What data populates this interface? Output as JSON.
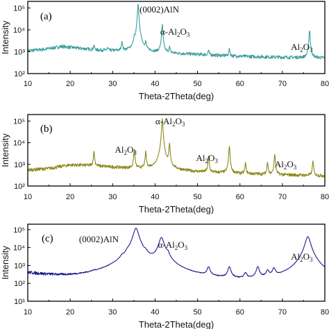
{
  "chart_data": [
    {
      "type": "line",
      "panel_label": "(a)",
      "xlabel": "Theta-2Theta(deg)",
      "ylabel": "Intensity",
      "xlim": [
        10,
        80
      ],
      "ylim": [
        100,
        200000
      ],
      "yscale": "log",
      "xticks": [
        "10",
        "20",
        "30",
        "40",
        "50",
        "60",
        "70",
        "80"
      ],
      "yticks": [
        {
          "value": 100,
          "label": "10²"
        },
        {
          "value": 1000,
          "label": "10³"
        },
        {
          "value": 10000,
          "label": "10⁴"
        },
        {
          "value": 100000,
          "label": "10⁵"
        }
      ],
      "color": "#3a9e9e",
      "baseline": [
        [
          10,
          1100
        ],
        [
          14,
          1300
        ],
        [
          18,
          1750
        ],
        [
          22,
          1450
        ],
        [
          26,
          1200
        ],
        [
          30,
          1100
        ],
        [
          40,
          900
        ],
        [
          50,
          750
        ],
        [
          60,
          620
        ],
        [
          70,
          560
        ],
        [
          80,
          520
        ]
      ],
      "peaks": [
        [
          25.6,
          2000
        ],
        [
          28.8,
          1500
        ],
        [
          32.2,
          3000
        ],
        [
          35.1,
          3500
        ],
        [
          36.0,
          160000
        ],
        [
          37.8,
          2500
        ],
        [
          41.7,
          18000
        ],
        [
          43.4,
          1600
        ],
        [
          52.6,
          1200
        ],
        [
          57.5,
          1400
        ],
        [
          76.4,
          9500
        ]
      ],
      "annotations": [
        {
          "text": "(0002)AlN",
          "x": 36.0
        },
        {
          "text": "α-Al2O3",
          "x": 41.7
        },
        {
          "text": "Al2O3",
          "x": 72.0
        }
      ]
    },
    {
      "type": "line",
      "panel_label": "(b)",
      "xlabel": "Theta-2Theta(deg)",
      "ylabel": "Intensity",
      "xlim": [
        10,
        80
      ],
      "ylim": [
        100,
        200000
      ],
      "yscale": "log",
      "xticks": [
        "10",
        "20",
        "30",
        "40",
        "50",
        "60",
        "70",
        "80"
      ],
      "yticks": [
        {
          "value": 100,
          "label": "10²"
        },
        {
          "value": 1000,
          "label": "10³"
        },
        {
          "value": 10000,
          "label": "10⁴"
        },
        {
          "value": 100000,
          "label": "10⁵"
        }
      ],
      "color": "#8a8a1a",
      "baseline": [
        [
          10,
          550
        ],
        [
          15,
          650
        ],
        [
          20,
          950
        ],
        [
          24,
          900
        ],
        [
          28,
          800
        ],
        [
          35,
          650
        ],
        [
          40,
          600
        ],
        [
          50,
          450
        ],
        [
          60,
          380
        ],
        [
          70,
          330
        ],
        [
          80,
          300
        ]
      ],
      "peaks": [
        [
          25.6,
          4000
        ],
        [
          35.1,
          5000
        ],
        [
          37.8,
          4000
        ],
        [
          41.7,
          130000
        ],
        [
          43.4,
          9000
        ],
        [
          52.6,
          2500
        ],
        [
          57.5,
          7000
        ],
        [
          61.3,
          1200
        ],
        [
          66.5,
          1300
        ],
        [
          68.2,
          3000
        ],
        [
          77.2,
          1500
        ]
      ],
      "annotations": [
        {
          "text": "α-Al2O3",
          "x": 41.7
        },
        {
          "text": "Al2O3",
          "x": 35.1
        },
        {
          "text": "Al2O3",
          "x": 52.6
        },
        {
          "text": "Al2O3",
          "x": 68.2
        }
      ]
    },
    {
      "type": "line",
      "panel_label": "(c)",
      "xlabel": "Theta-2Theta(deg)",
      "ylabel": "Intensity",
      "xlim": [
        10,
        80
      ],
      "ylim": [
        10,
        200000
      ],
      "yscale": "log",
      "xticks": [
        "10",
        "20",
        "30",
        "40",
        "50",
        "60",
        "70",
        "80"
      ],
      "yticks": [
        {
          "value": 10,
          "label": "10¹"
        },
        {
          "value": 100,
          "label": "10²"
        },
        {
          "value": 1000,
          "label": "10³"
        },
        {
          "value": 10000,
          "label": "10⁴"
        },
        {
          "value": 100000,
          "label": "10⁵"
        }
      ],
      "color": "#1a1a8a",
      "baseline": [
        [
          10,
          350
        ],
        [
          14,
          250
        ],
        [
          18,
          180
        ],
        [
          22,
          130
        ],
        [
          28,
          100
        ],
        [
          35,
          90
        ],
        [
          40,
          85
        ],
        [
          50,
          70
        ],
        [
          60,
          60
        ],
        [
          70,
          55
        ],
        [
          80,
          50
        ]
      ],
      "peaks": [
        [
          25.6,
          150
        ],
        [
          32.2,
          900
        ],
        [
          33.5,
          1500
        ],
        [
          35.5,
          120000
        ],
        [
          37.8,
          2000
        ],
        [
          41.5,
          35000
        ],
        [
          43.0,
          2500
        ],
        [
          52.6,
          600
        ],
        [
          57.5,
          700
        ],
        [
          61.3,
          250
        ],
        [
          64.2,
          700
        ],
        [
          66.5,
          350
        ],
        [
          68.0,
          500
        ],
        [
          76.0,
          40000
        ]
      ],
      "annotations": [
        {
          "text": "(0002)AlN",
          "x": 35.5
        },
        {
          "text": "α-Al2O3",
          "x": 41.5
        },
        {
          "text": "Al2O3",
          "x": 72.0
        }
      ]
    }
  ]
}
